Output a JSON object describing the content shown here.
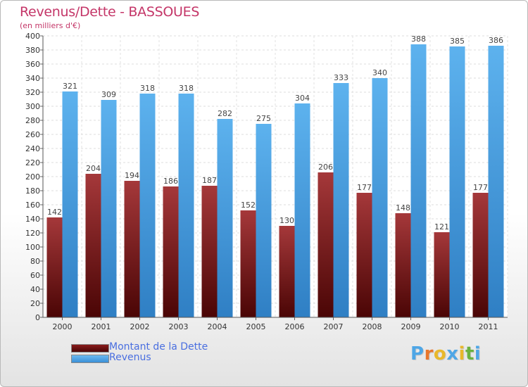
{
  "header": {
    "title": "Revenus/Dette - BASSOUES",
    "subtitle": "(en milliers d'€)"
  },
  "colors": {
    "title": "#c43668",
    "debt": "#7b1a18",
    "revenue": "#4ea6e6",
    "legend_text": "#4a6fe0"
  },
  "legend": {
    "position": "bottom-left",
    "items": [
      {
        "label": "Montant de la Dette",
        "color": "#6b0e0e"
      },
      {
        "label": "Revenus",
        "color": "#4ea6e6"
      }
    ]
  },
  "brand": {
    "letters": [
      "P",
      "r",
      "o",
      "x",
      "i",
      "t",
      "i"
    ],
    "colors": [
      "#4ea6e6",
      "#e8762b",
      "#e8b82b",
      "#4ea6e6",
      "#e8b82b",
      "#6ab23f",
      "#4ea6e6"
    ]
  },
  "chart_data": {
    "type": "bar",
    "categories": [
      "2000",
      "2001",
      "2002",
      "2003",
      "2004",
      "2005",
      "2006",
      "2007",
      "2008",
      "2009",
      "2010",
      "2011"
    ],
    "series": [
      {
        "name": "Montant de la Dette",
        "values": [
          142,
          204,
          194,
          186,
          187,
          152,
          130,
          206,
          177,
          148,
          121,
          177
        ]
      },
      {
        "name": "Revenus",
        "values": [
          321,
          309,
          318,
          318,
          282,
          275,
          304,
          333,
          340,
          388,
          385,
          386
        ]
      }
    ],
    "ylim": [
      0,
      400
    ],
    "ytick_step": 20,
    "yticks": [
      "0",
      "20",
      "40",
      "60",
      "80",
      "100",
      "120",
      "140",
      "160",
      "180",
      "200",
      "220",
      "240",
      "260",
      "280",
      "300",
      "320",
      "340",
      "360",
      "380",
      "400"
    ],
    "grid": true
  }
}
